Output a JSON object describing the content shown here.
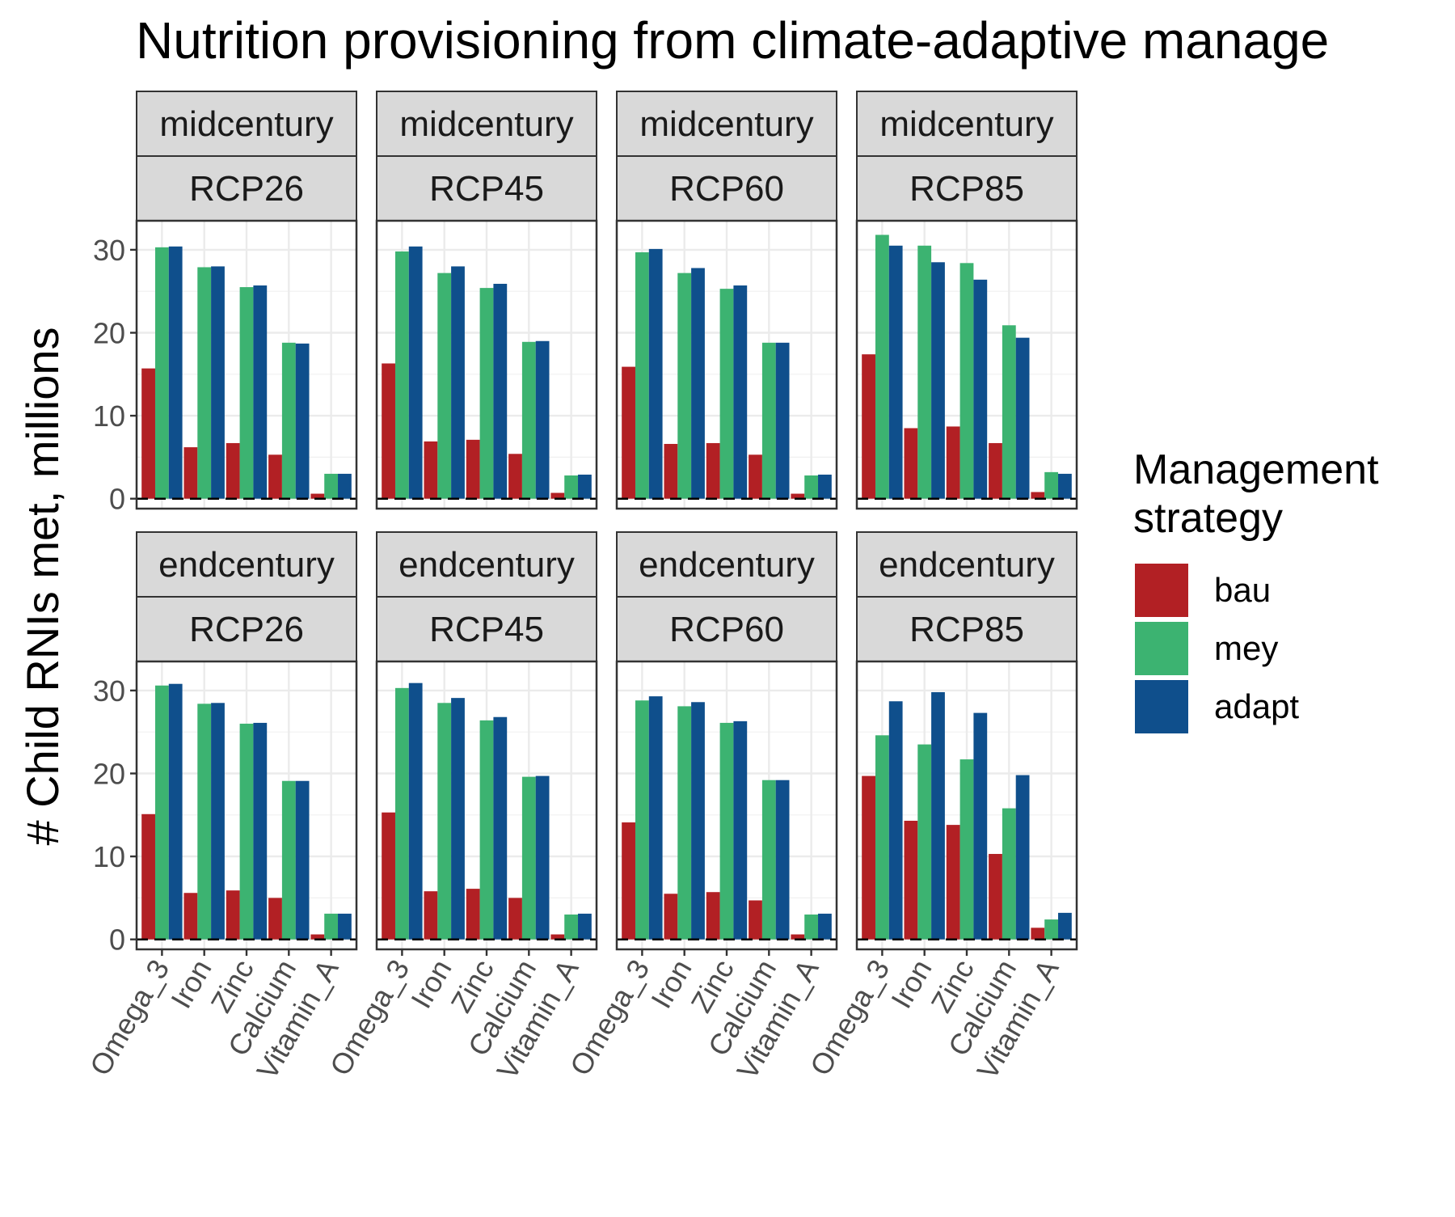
{
  "chart_data": {
    "type": "bar",
    "title": "Nutrition provisioning from climate-adaptive manage",
    "xlabel": "",
    "ylabel": "# Child RNIs met, millions",
    "ylim": [
      -1.2,
      33.5
    ],
    "yticks": [
      0,
      10,
      20,
      30
    ],
    "ytick_labels": [
      "0",
      "10",
      "20",
      "30"
    ],
    "grid": true,
    "reference_line": 0,
    "legend": {
      "title_lines": [
        "Management",
        "strategy"
      ],
      "position": "right",
      "entries": [
        {
          "name": "bau",
          "color": "#B22024"
        },
        {
          "name": "mey",
          "color": "#3CB371"
        },
        {
          "name": "adapt",
          "color": "#0F4F8C"
        }
      ]
    },
    "categories": [
      "Omega_3",
      "Iron",
      "Zinc",
      "Calcium",
      "Vitamin_A"
    ],
    "series_names": [
      "bau",
      "mey",
      "adapt"
    ],
    "row_labels": [
      "midcentury",
      "endcentury"
    ],
    "col_labels": [
      "RCP26",
      "RCP45",
      "RCP60",
      "RCP85"
    ],
    "panels": [
      {
        "row": "midcentury",
        "col": "RCP26",
        "series": [
          {
            "name": "bau",
            "values": [
              15.7,
              6.2,
              6.7,
              5.3,
              0.6
            ]
          },
          {
            "name": "mey",
            "values": [
              30.3,
              27.9,
              25.5,
              18.8,
              3.0
            ]
          },
          {
            "name": "adapt",
            "values": [
              30.4,
              28.0,
              25.7,
              18.7,
              3.0
            ]
          }
        ]
      },
      {
        "row": "midcentury",
        "col": "RCP45",
        "series": [
          {
            "name": "bau",
            "values": [
              16.3,
              6.9,
              7.1,
              5.4,
              0.7
            ]
          },
          {
            "name": "mey",
            "values": [
              29.8,
              27.2,
              25.4,
              18.9,
              2.8
            ]
          },
          {
            "name": "adapt",
            "values": [
              30.4,
              28.0,
              25.9,
              19.0,
              2.9
            ]
          }
        ]
      },
      {
        "row": "midcentury",
        "col": "RCP60",
        "series": [
          {
            "name": "bau",
            "values": [
              15.9,
              6.6,
              6.7,
              5.3,
              0.6
            ]
          },
          {
            "name": "mey",
            "values": [
              29.7,
              27.2,
              25.3,
              18.8,
              2.8
            ]
          },
          {
            "name": "adapt",
            "values": [
              30.1,
              27.8,
              25.7,
              18.8,
              2.9
            ]
          }
        ]
      },
      {
        "row": "midcentury",
        "col": "RCP85",
        "series": [
          {
            "name": "bau",
            "values": [
              17.4,
              8.5,
              8.7,
              6.7,
              0.8
            ]
          },
          {
            "name": "mey",
            "values": [
              31.8,
              30.5,
              28.4,
              20.9,
              3.2
            ]
          },
          {
            "name": "adapt",
            "values": [
              30.5,
              28.5,
              26.4,
              19.4,
              3.0
            ]
          }
        ]
      },
      {
        "row": "endcentury",
        "col": "RCP26",
        "series": [
          {
            "name": "bau",
            "values": [
              15.1,
              5.6,
              5.9,
              5.0,
              0.6
            ]
          },
          {
            "name": "mey",
            "values": [
              30.6,
              28.4,
              26.0,
              19.1,
              3.1
            ]
          },
          {
            "name": "adapt",
            "values": [
              30.8,
              28.5,
              26.1,
              19.1,
              3.1
            ]
          }
        ]
      },
      {
        "row": "endcentury",
        "col": "RCP45",
        "series": [
          {
            "name": "bau",
            "values": [
              15.3,
              5.8,
              6.1,
              5.0,
              0.6
            ]
          },
          {
            "name": "mey",
            "values": [
              30.3,
              28.5,
              26.4,
              19.6,
              3.0
            ]
          },
          {
            "name": "adapt",
            "values": [
              30.9,
              29.1,
              26.8,
              19.7,
              3.1
            ]
          }
        ]
      },
      {
        "row": "endcentury",
        "col": "RCP60",
        "series": [
          {
            "name": "bau",
            "values": [
              14.1,
              5.5,
              5.7,
              4.7,
              0.6
            ]
          },
          {
            "name": "mey",
            "values": [
              28.8,
              28.1,
              26.1,
              19.2,
              3.0
            ]
          },
          {
            "name": "adapt",
            "values": [
              29.3,
              28.6,
              26.3,
              19.2,
              3.1
            ]
          }
        ]
      },
      {
        "row": "endcentury",
        "col": "RCP85",
        "series": [
          {
            "name": "bau",
            "values": [
              19.7,
              14.3,
              13.8,
              10.3,
              1.4
            ]
          },
          {
            "name": "mey",
            "values": [
              24.6,
              23.5,
              21.7,
              15.8,
              2.4
            ]
          },
          {
            "name": "adapt",
            "values": [
              28.7,
              29.8,
              27.3,
              19.8,
              3.2
            ]
          }
        ]
      }
    ]
  }
}
